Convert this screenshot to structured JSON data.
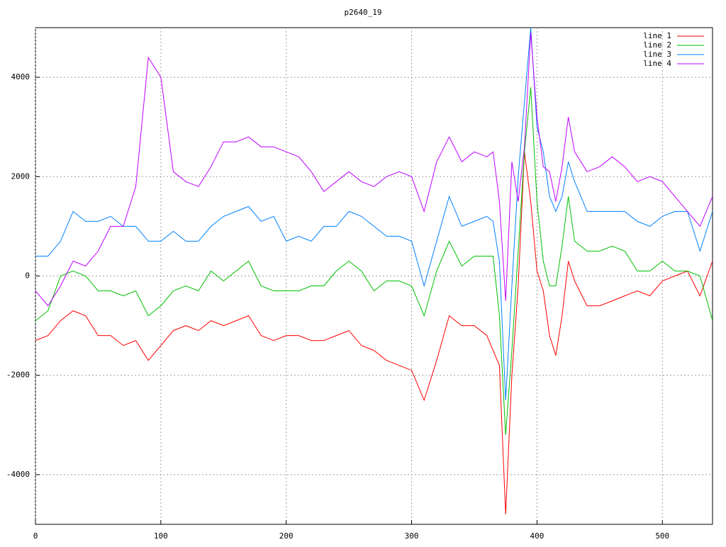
{
  "chart_data": {
    "type": "line",
    "title": "p2640_19",
    "x": [
      0,
      10,
      20,
      30,
      40,
      50,
      60,
      70,
      80,
      90,
      100,
      110,
      120,
      130,
      140,
      150,
      160,
      170,
      180,
      190,
      200,
      210,
      220,
      230,
      240,
      250,
      260,
      270,
      280,
      290,
      300,
      310,
      320,
      330,
      340,
      350,
      360,
      365,
      370,
      375,
      380,
      385,
      390,
      395,
      400,
      405,
      410,
      415,
      420,
      425,
      430,
      440,
      450,
      460,
      470,
      480,
      490,
      500,
      510,
      520,
      530,
      540
    ],
    "series": [
      {
        "name": "line 1",
        "color": "#ff0000",
        "values": [
          -1300,
          -1200,
          -900,
          -700,
          -800,
          -1200,
          -1200,
          -1400,
          -1300,
          -1700,
          -1400,
          -1100,
          -1000,
          -1100,
          -900,
          -1000,
          -900,
          -800,
          -1200,
          -1300,
          -1200,
          -1200,
          -1300,
          -1300,
          -1200,
          -1100,
          -1400,
          -1500,
          -1700,
          -1800,
          -1900,
          -2500,
          -1700,
          -800,
          -1000,
          -1000,
          -1200,
          -1500,
          -1800,
          -4800,
          -2000,
          -200,
          2500,
          1500,
          100,
          -300,
          -1200,
          -1600,
          -800,
          300,
          -100,
          -600,
          -600,
          -500,
          -400,
          -300,
          -400,
          -100,
          0,
          100,
          -400,
          300
        ]
      },
      {
        "name": "line 2",
        "color": "#00c000",
        "values": [
          -900,
          -700,
          0,
          100,
          0,
          -300,
          -300,
          -400,
          -300,
          -800,
          -600,
          -300,
          -200,
          -300,
          100,
          -100,
          100,
          300,
          -200,
          -300,
          -300,
          -300,
          -200,
          -200,
          100,
          300,
          100,
          -300,
          -100,
          -100,
          -200,
          -800,
          100,
          700,
          200,
          400,
          400,
          400,
          -800,
          -3200,
          -1500,
          500,
          2500,
          3800,
          1500,
          300,
          -200,
          -200,
          600,
          1600,
          700,
          500,
          500,
          600,
          500,
          100,
          100,
          300,
          100,
          100,
          0,
          -900
        ]
      },
      {
        "name": "line 3",
        "color": "#0080ff",
        "values": [
          400,
          400,
          700,
          1300,
          1100,
          1100,
          1200,
          1000,
          1000,
          700,
          700,
          900,
          700,
          700,
          1000,
          1200,
          1300,
          1400,
          1100,
          1200,
          700,
          800,
          700,
          1000,
          1000,
          1300,
          1200,
          1000,
          800,
          800,
          700,
          -200,
          700,
          1600,
          1000,
          1100,
          1200,
          1100,
          300,
          -2500,
          -200,
          2000,
          3500,
          5000,
          3000,
          2500,
          1600,
          1300,
          1600,
          2300,
          1900,
          1300,
          1300,
          1300,
          1300,
          1100,
          1000,
          1200,
          1300,
          1300,
          500,
          1300
        ]
      },
      {
        "name": "line 4",
        "color": "#c000ff",
        "values": [
          -300,
          -600,
          -200,
          300,
          200,
          500,
          1000,
          1000,
          1800,
          4400,
          4000,
          2100,
          1900,
          1800,
          2200,
          2700,
          2700,
          2800,
          2600,
          2600,
          2500,
          2400,
          2100,
          1700,
          1900,
          2100,
          1900,
          1800,
          2000,
          2100,
          2000,
          1300,
          2300,
          2800,
          2300,
          2500,
          2400,
          2500,
          1500,
          -500,
          2300,
          1500,
          2600,
          4900,
          3200,
          2200,
          2100,
          1500,
          2200,
          3200,
          2500,
          2100,
          2200,
          2400,
          2200,
          1900,
          2000,
          1900,
          1600,
          1300,
          1000,
          1600
        ]
      }
    ],
    "xlim": [
      0,
      540
    ],
    "ylim": [
      -5000,
      5000
    ],
    "xticks": [
      0,
      100,
      200,
      300,
      400,
      500
    ],
    "yticks": [
      -4000,
      -2000,
      0,
      2000,
      4000
    ],
    "grid": true,
    "legend": "top-right"
  }
}
